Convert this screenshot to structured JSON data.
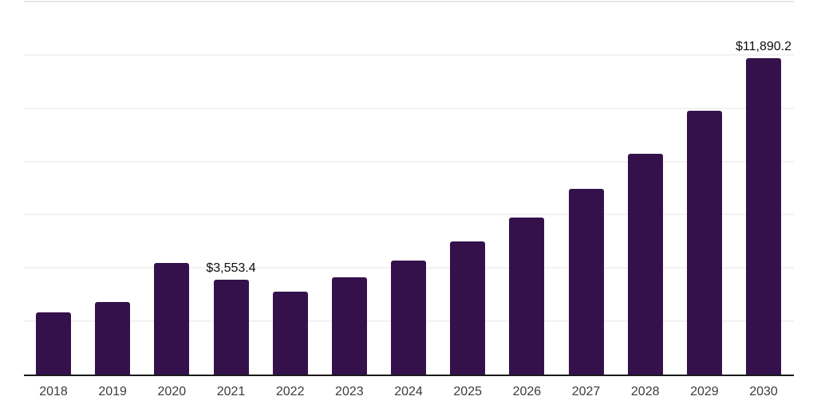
{
  "chart_data": {
    "type": "bar",
    "title": "",
    "categories": [
      "2018",
      "2019",
      "2020",
      "2021",
      "2022",
      "2023",
      "2024",
      "2025",
      "2026",
      "2027",
      "2028",
      "2029",
      "2030"
    ],
    "values": [
      2330,
      2715,
      4175,
      3553.4,
      3100,
      3645,
      4270,
      4985,
      5880,
      6980,
      8290,
      9905,
      11890.2
    ],
    "point_labels": {
      "2021": "$3,553.4",
      "2030": "$11,890.2"
    },
    "xlabel": "",
    "ylabel": "",
    "ylim": [
      0,
      14000
    ],
    "gridline_step": 2000,
    "y_tick_labels_visible": false,
    "grid": "horizontal",
    "legend": "none",
    "colors": {
      "bar": "#35114C",
      "axis_line": "#1a1a1a",
      "gridline": "#f2f2f2",
      "top_gridline": "#e7e7e7",
      "year_label": "#3c3c3c",
      "data_label": "#0e0e0e",
      "background": "#ffffff"
    }
  }
}
